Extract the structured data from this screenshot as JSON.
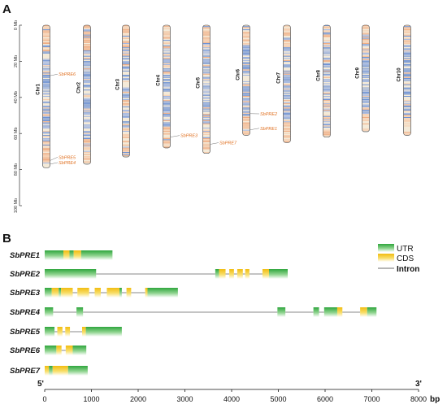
{
  "panel_a": {
    "label": "A",
    "scale_ticks": [
      "0 Mb",
      "20 Mb",
      "40 Mb",
      "60 Mb",
      "80 Mb",
      "100 Mb"
    ],
    "chromosomes": [
      {
        "label": "Chr1",
        "length_mb": 79
      },
      {
        "label": "Chr2",
        "length_mb": 77
      },
      {
        "label": "Chr3",
        "length_mb": 73
      },
      {
        "label": "Chr4",
        "length_mb": 68
      },
      {
        "label": "Chr5",
        "length_mb": 71
      },
      {
        "label": "Chr6",
        "length_mb": 61
      },
      {
        "label": "Chr7",
        "length_mb": 65
      },
      {
        "label": "Chr8",
        "length_mb": 62
      },
      {
        "label": "Chr9",
        "length_mb": 59
      },
      {
        "label": "Chr10",
        "length_mb": 61
      }
    ],
    "genes": [
      {
        "name": "SbPRE6",
        "chr": 1,
        "pos_mb": 28
      },
      {
        "name": "SbPRE5",
        "chr": 1,
        "pos_mb": 75
      },
      {
        "name": "SbPRE4",
        "chr": 1,
        "pos_mb": 77
      },
      {
        "name": "SbPRE3",
        "chr": 4,
        "pos_mb": 62
      },
      {
        "name": "SbPRE7",
        "chr": 5,
        "pos_mb": 66
      },
      {
        "name": "SbPRE2",
        "chr": 6,
        "pos_mb": 49
      },
      {
        "name": "SbPRE1",
        "chr": 6,
        "pos_mb": 58
      }
    ]
  },
  "panel_b": {
    "label": "B",
    "legend": {
      "utr": "UTR",
      "cds": "CDS",
      "intron": "Intron"
    },
    "axis": {
      "ticks": [
        "0",
        "1000",
        "2000",
        "3000",
        "4000",
        "5000",
        "6000",
        "7000",
        "8000"
      ],
      "unit": "bp",
      "start_label": "5'",
      "end_label": "3'",
      "max": 8000
    },
    "colors": {
      "utr": "#3fb04a",
      "cds": "#f2c21b",
      "intron": "#8a8a8a",
      "chr_blue": "#5b84d8",
      "chr_orange": "#f0a070"
    },
    "genes": [
      {
        "name": "SbPRE1",
        "length": 1450,
        "segments": [
          [
            "utr",
            0,
            400
          ],
          [
            "cds",
            400,
            530
          ],
          [
            "utr",
            530,
            620
          ],
          [
            "cds",
            620,
            780
          ],
          [
            "utr",
            780,
            1450
          ]
        ]
      },
      {
        "name": "SbPRE2",
        "length": 5200,
        "segments": [
          [
            "utr",
            0,
            1100
          ],
          [
            "intron",
            1100,
            3650
          ],
          [
            "utr",
            3650,
            3730
          ],
          [
            "cds",
            3730,
            3870
          ],
          [
            "intron",
            3870,
            3950
          ],
          [
            "cds",
            3950,
            4050
          ],
          [
            "intron",
            4050,
            4120
          ],
          [
            "cds",
            4120,
            4240
          ],
          [
            "intron",
            4240,
            4290
          ],
          [
            "cds",
            4290,
            4380
          ],
          [
            "intron",
            4380,
            4660
          ],
          [
            "cds",
            4660,
            4800
          ],
          [
            "utr",
            4800,
            5200
          ]
        ]
      },
      {
        "name": "SbPRE3",
        "length": 2850,
        "segments": [
          [
            "utr",
            0,
            150
          ],
          [
            "cds",
            150,
            300
          ],
          [
            "utr",
            300,
            350
          ],
          [
            "cds",
            350,
            600
          ],
          [
            "intron",
            600,
            700
          ],
          [
            "cds",
            700,
            950
          ],
          [
            "intron",
            950,
            1070
          ],
          [
            "cds",
            1070,
            1200
          ],
          [
            "intron",
            1200,
            1330
          ],
          [
            "cds",
            1330,
            1600
          ],
          [
            "utr",
            1600,
            1650
          ],
          [
            "intron",
            1650,
            1750
          ],
          [
            "cds",
            1750,
            1850
          ],
          [
            "intron",
            1850,
            2150
          ],
          [
            "cds",
            2150,
            2200
          ],
          [
            "utr",
            2200,
            2850
          ]
        ]
      },
      {
        "name": "SbPRE4",
        "length": 7100,
        "segments": [
          [
            "utr",
            0,
            180
          ],
          [
            "intron",
            180,
            680
          ],
          [
            "utr",
            680,
            820
          ],
          [
            "intron",
            820,
            4980
          ],
          [
            "utr",
            4980,
            5150
          ],
          [
            "intron",
            5150,
            5750
          ],
          [
            "utr",
            5750,
            5870
          ],
          [
            "intron",
            5870,
            5980
          ],
          [
            "utr",
            5980,
            6260
          ],
          [
            "cds",
            6260,
            6370
          ],
          [
            "intron",
            6370,
            6750
          ],
          [
            "cds",
            6750,
            6900
          ],
          [
            "utr",
            6900,
            7100
          ]
        ]
      },
      {
        "name": "SbPRE5",
        "length": 1650,
        "segments": [
          [
            "utr",
            0,
            210
          ],
          [
            "intron",
            210,
            270
          ],
          [
            "cds",
            270,
            380
          ],
          [
            "intron",
            380,
            440
          ],
          [
            "cds",
            440,
            540
          ],
          [
            "intron",
            540,
            800
          ],
          [
            "cds",
            800,
            880
          ],
          [
            "utr",
            880,
            1650
          ]
        ]
      },
      {
        "name": "SbPRE6",
        "length": 890,
        "segments": [
          [
            "utr",
            0,
            250
          ],
          [
            "cds",
            250,
            360
          ],
          [
            "intron",
            360,
            450
          ],
          [
            "cds",
            450,
            600
          ],
          [
            "utr",
            600,
            890
          ]
        ]
      },
      {
        "name": "SbPRE7",
        "length": 920,
        "segments": [
          [
            "cds",
            0,
            90
          ],
          [
            "utr",
            90,
            170
          ],
          [
            "cds",
            170,
            500
          ],
          [
            "utr",
            500,
            920
          ]
        ]
      }
    ]
  }
}
